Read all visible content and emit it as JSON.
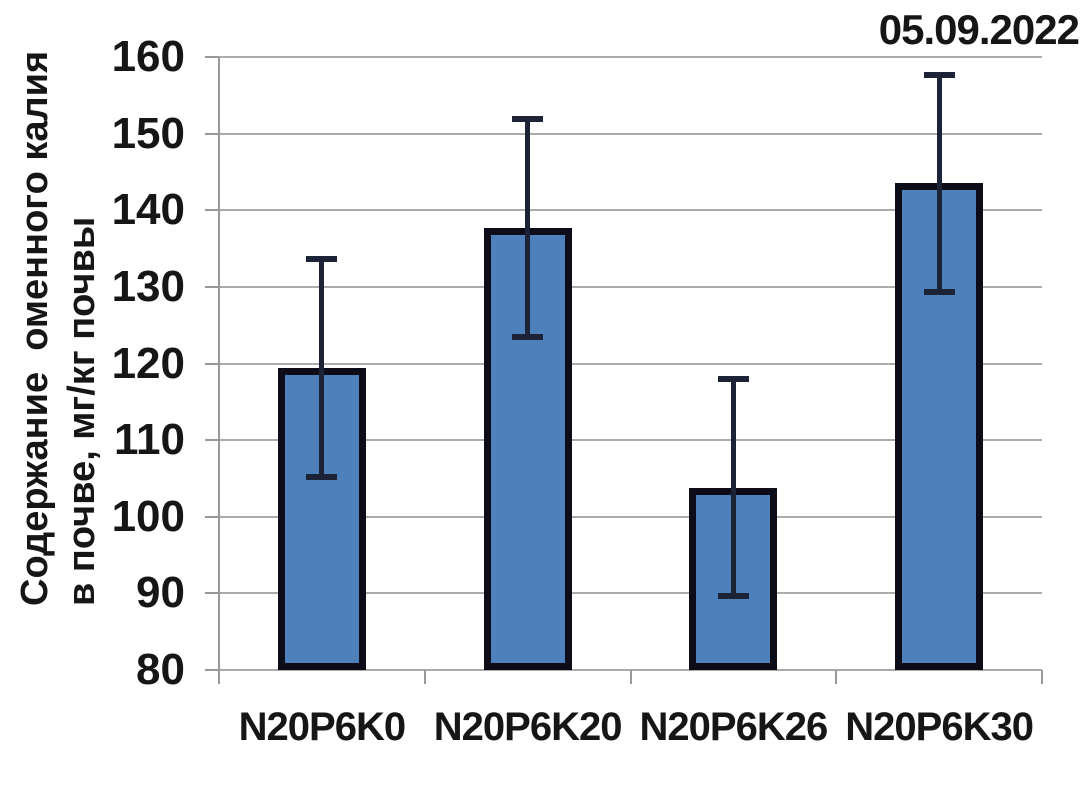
{
  "annotation": {
    "date": "05.09.2022"
  },
  "chart_data": {
    "type": "bar",
    "title": "",
    "annotation": "05.09.2022",
    "categories": [
      "N20P6K0",
      "N20P6K20",
      "N20P6K26",
      "N20P6K30"
    ],
    "values": [
      119.4,
      137.7,
      103.8,
      143.5
    ],
    "error_bars": [
      14.2,
      14.2,
      14.2,
      14.2
    ],
    "xlabel": "",
    "ylabel": "Содержание оменного калия в почве, мг/кг почвы",
    "ylabel_lines": [
      "Содержание  оменного калия",
      "в почве, мг/кг почвы"
    ],
    "ylim": [
      80,
      160
    ],
    "yticks": [
      80,
      90,
      100,
      110,
      120,
      130,
      140,
      150,
      160
    ],
    "grid": true,
    "legend": false,
    "bar_gap_ratio": 0.43,
    "colors": {
      "bar_fill": "#4E81BC",
      "bar_border": "#0d0d1a",
      "error_bar": "#1c2336",
      "gridline": "#ababab",
      "axis": "#999999",
      "text": "#161616",
      "background": "#ffffff"
    }
  }
}
